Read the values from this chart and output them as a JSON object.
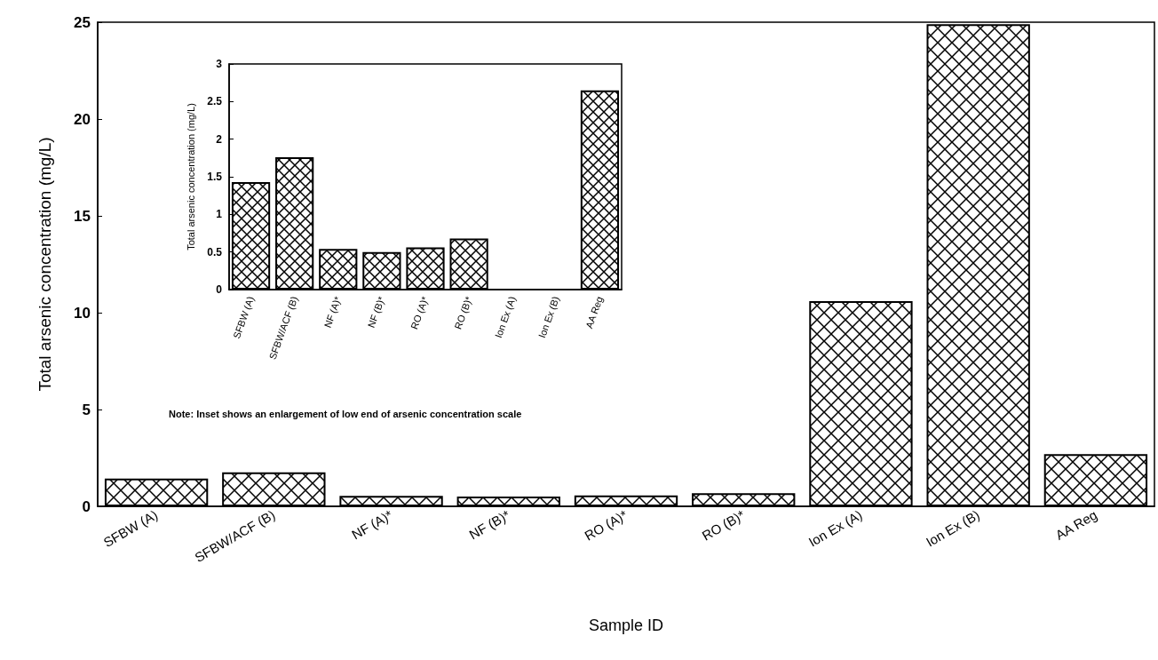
{
  "chart_data": [
    {
      "type": "bar",
      "xlabel": "Sample ID",
      "ylabel": "Total arsenic concentration (mg/L)",
      "categories": [
        "SFBW (A)",
        "SFBW/ACF (B)",
        "NF (A)*",
        "NF (B)*",
        "RO (A)*",
        "RO (B)*",
        "Ion Ex (A)",
        "Ion Ex (B)",
        "AA Reg"
      ],
      "values": [
        1.43,
        1.76,
        0.54,
        0.5,
        0.56,
        0.68,
        10.6,
        24.9,
        2.7
      ],
      "color": "#000000",
      "ylim": [
        0,
        25
      ],
      "yticks": [
        0,
        5,
        10,
        15,
        20,
        25
      ],
      "grid": false,
      "annotations": [
        "Note:  Inset shows an enlargement of low end of arsenic concentration scale"
      ]
    },
    {
      "type": "bar",
      "ylabel": "Total arsenic concentration (mg/L)",
      "categories": [
        "SFBW (A)",
        "SFBW/ACF (B)",
        "NF (A)*",
        "NF (B)*",
        "RO (A)*",
        "RO (B)*",
        "Ion Ex (A)",
        "Ion Ex (B)",
        "AA Reg"
      ],
      "values": [
        1.43,
        1.76,
        0.54,
        0.5,
        0.56,
        0.68,
        null,
        null,
        2.65
      ],
      "color": "#000000",
      "ylim": [
        0,
        3
      ],
      "yticks": [
        0,
        0.5,
        1,
        1.5,
        2,
        2.5,
        3
      ],
      "grid": false
    }
  ]
}
